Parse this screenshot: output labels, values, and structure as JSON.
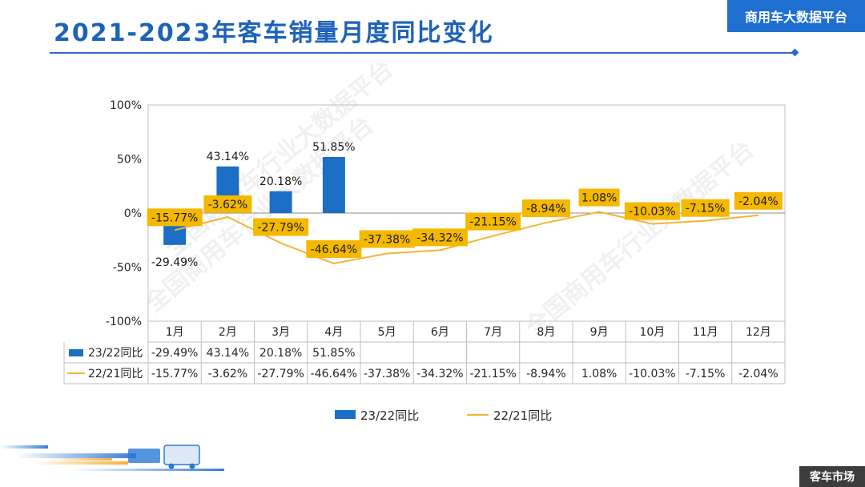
{
  "header": {
    "title": "2021-2023年客车销量月度同比变化",
    "brand": "商用车大数据平台"
  },
  "footer": {
    "tag": "客车市场"
  },
  "watermark": "全国商用车行业大数据平台",
  "colors": {
    "bar": "#1a6fc5",
    "line": "#f5b335",
    "label_bg": "#f5b800",
    "accent": "#1f6fd1"
  },
  "chart_data": {
    "type": "bar",
    "categories": [
      "1月",
      "2月",
      "3月",
      "4月",
      "5月",
      "6月",
      "7月",
      "8月",
      "9月",
      "10月",
      "11月",
      "12月"
    ],
    "ylim": [
      -100,
      100
    ],
    "yticks": [
      100,
      50,
      0,
      -50,
      -100
    ],
    "ytick_labels": [
      "100%",
      "50%",
      "0%",
      "-50%",
      "-100%"
    ],
    "series": [
      {
        "name": "23/22同比",
        "kind": "bar",
        "values": [
          -29.49,
          43.14,
          20.18,
          51.85,
          null,
          null,
          null,
          null,
          null,
          null,
          null,
          null
        ],
        "labels": [
          "-29.49%",
          "43.14%",
          "20.18%",
          "51.85%",
          "",
          "",
          "",
          "",
          "",
          "",
          "",
          ""
        ]
      },
      {
        "name": "22/21同比",
        "kind": "line",
        "values": [
          -15.77,
          -3.62,
          -27.79,
          -46.64,
          -37.38,
          -34.32,
          -21.15,
          -8.94,
          1.08,
          -10.03,
          -7.15,
          -2.04
        ],
        "labels": [
          "-15.77%",
          "-3.62%",
          "-27.79%",
          "-46.64%",
          "-37.38%",
          "-34.32%",
          "-21.15%",
          "-8.94%",
          "1.08%",
          "-10.03%",
          "-7.15%",
          "-2.04%"
        ]
      }
    ],
    "legend_position": "bottom",
    "data_table": true,
    "grid": false
  }
}
